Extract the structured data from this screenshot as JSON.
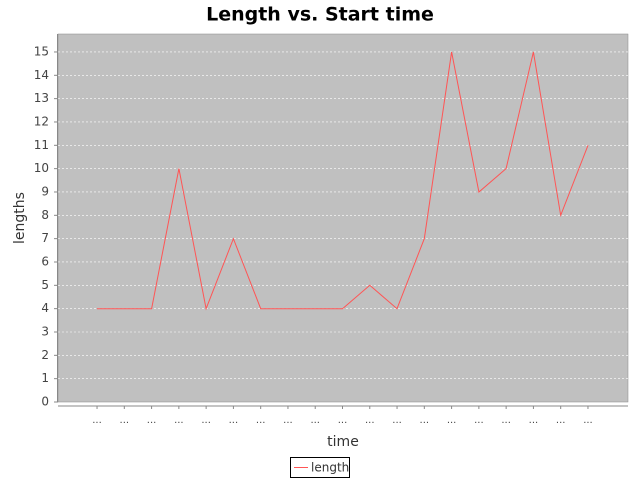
{
  "chart_data": {
    "type": "line",
    "title": "Length vs. Start time",
    "x_label": "time",
    "y_label": "lengths",
    "categories": [
      "...",
      "...",
      "...",
      "...",
      "...",
      "...",
      "...",
      "...",
      "...",
      "...",
      "...",
      "...",
      "...",
      "...",
      "...",
      "...",
      "...",
      "...",
      "..."
    ],
    "series": [
      {
        "name": "length",
        "color": "#ff5555",
        "values": [
          4,
          4,
          4,
          10,
          4,
          7,
          4,
          4,
          4,
          4,
          5,
          4,
          7,
          15,
          9,
          10,
          15,
          8,
          11
        ]
      }
    ],
    "ylim": [
      0,
      15.77
    ],
    "yticks": [
      0,
      1,
      2,
      3,
      4,
      5,
      6,
      7,
      8,
      9,
      10,
      11,
      12,
      13,
      14,
      15
    ],
    "grid": true,
    "legend": "bottom"
  }
}
